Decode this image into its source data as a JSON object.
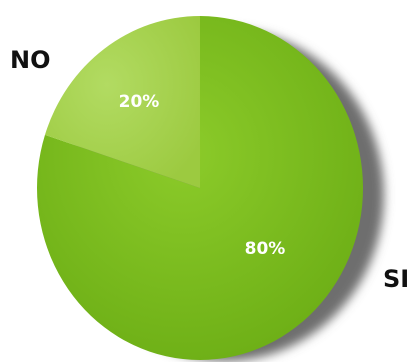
{
  "chart_data": {
    "type": "pie",
    "categories": [
      "SI",
      "NO"
    ],
    "values": [
      80,
      20
    ],
    "data_labels": [
      "80%",
      "20%"
    ],
    "colors": [
      "#77b81b",
      "#a3d14a"
    ],
    "shadow_color": "#6e6e6e",
    "legend": "none"
  }
}
